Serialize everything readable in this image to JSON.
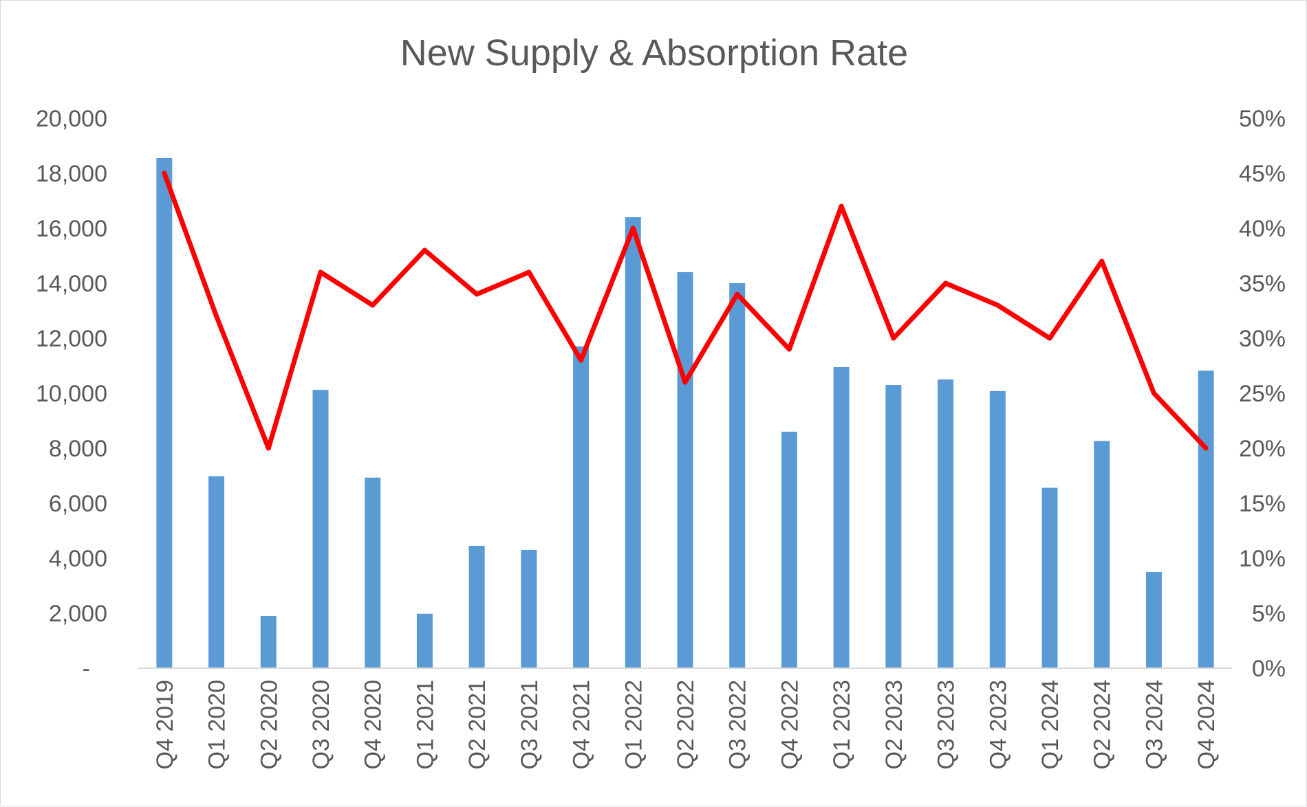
{
  "chart_data": {
    "type": "bar",
    "title": "New Supply & Absorption Rate",
    "categories": [
      "Q4 2019",
      "Q1 2020",
      "Q2 2020",
      "Q3 2020",
      "Q4 2020",
      "Q1 2021",
      "Q2 2021",
      "Q3 2021",
      "Q4 2021",
      "Q1 2022",
      "Q2 2022",
      "Q3 2022",
      "Q4 2022",
      "Q1 2023",
      "Q2 2023",
      "Q3 2023",
      "Q4 2023",
      "Q1 2024",
      "Q2 2024",
      "Q3 2024",
      "Q4 2024"
    ],
    "series": [
      {
        "type": "bar",
        "axis": "left",
        "color": "#5b9bd5",
        "values": [
          18550,
          6980,
          1900,
          10120,
          6930,
          1980,
          4450,
          4300,
          11700,
          16400,
          14400,
          14000,
          8600,
          10950,
          10300,
          10500,
          10080,
          6560,
          8260,
          3500,
          10820
        ]
      },
      {
        "type": "line",
        "axis": "right",
        "color": "#ff0000",
        "values": [
          0.45,
          0.32,
          0.2,
          0.36,
          0.33,
          0.38,
          0.34,
          0.36,
          0.28,
          0.4,
          0.26,
          0.34,
          0.29,
          0.42,
          0.3,
          0.35,
          0.33,
          0.3,
          0.37,
          0.25,
          0.2
        ]
      }
    ],
    "y_left": {
      "min": 0,
      "max": 20000,
      "ticks": [
        0,
        2000,
        4000,
        6000,
        8000,
        10000,
        12000,
        14000,
        16000,
        18000,
        20000
      ],
      "tick_labels": [
        "-",
        "2,000",
        "4,000",
        "6,000",
        "8,000",
        "10,000",
        "12,000",
        "14,000",
        "16,000",
        "18,000",
        "20,000"
      ]
    },
    "y_right": {
      "min": 0,
      "max": 0.5,
      "ticks": [
        0,
        0.05,
        0.1,
        0.15,
        0.2,
        0.25,
        0.3,
        0.35,
        0.4,
        0.45,
        0.5
      ],
      "tick_labels": [
        "0%",
        "5%",
        "10%",
        "15%",
        "20%",
        "25%",
        "30%",
        "35%",
        "40%",
        "45%",
        "50%"
      ]
    },
    "xlabel": "",
    "ylabel": "",
    "grid": false,
    "legend": "none"
  }
}
